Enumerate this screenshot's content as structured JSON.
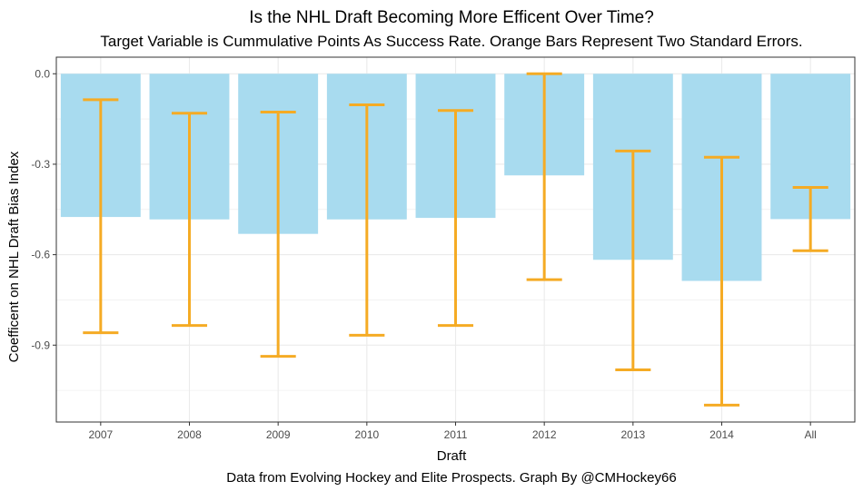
{
  "chart_data": {
    "type": "bar",
    "title": "Is the NHL Draft Becoming More Efficent Over Time?",
    "subtitle": "Target Variable is Cummulative Points As Success Rate. Orange Bars Represent Two Standard Errors.",
    "xlabel": "Draft",
    "ylabel": "Coefficent on NHL Draft Bias Index",
    "caption": "Data from Evolving Hockey and Elite Prospects. Graph By @CMHockey66",
    "categories": [
      "2007",
      "2008",
      "2009",
      "2010",
      "2011",
      "2012",
      "2013",
      "2014",
      "All"
    ],
    "values": [
      -0.475,
      -0.483,
      -0.531,
      -0.483,
      -0.478,
      -0.337,
      -0.617,
      -0.687,
      -0.482
    ],
    "error_low": [
      -0.859,
      -0.835,
      -0.937,
      -0.867,
      -0.835,
      -0.683,
      -0.982,
      -1.099,
      -0.587
    ],
    "error_high": [
      -0.086,
      -0.131,
      -0.127,
      -0.103,
      -0.122,
      0.0,
      -0.256,
      -0.277,
      -0.377
    ],
    "yticks": [
      "0.0",
      "-0.3",
      "-0.6",
      "-0.9"
    ],
    "ytick_values": [
      0.0,
      -0.3,
      -0.6,
      -0.9
    ],
    "ylim": [
      -1.155,
      0.055
    ],
    "grid": true,
    "colors": {
      "bar": "#a8dbef",
      "error_bar": "#f5ab24",
      "grid": "#ebebeb",
      "panel_border": "#333333"
    }
  }
}
